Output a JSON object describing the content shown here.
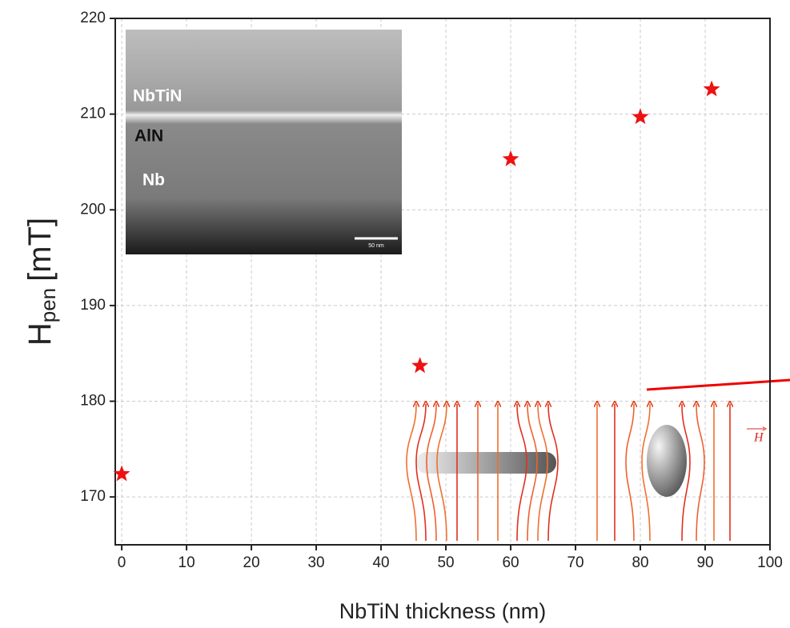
{
  "chart_data": {
    "type": "scatter",
    "x_label": "NbTiN thickness (nm)",
    "y_label": {
      "main": "H",
      "sub": "pen",
      "unit": "[mT]"
    },
    "x": [
      0,
      46,
      60,
      80,
      91
    ],
    "series": [
      {
        "color": "#ee1111",
        "values": [
          172.4,
          183.7,
          205.3,
          209.7,
          212.6
        ]
      }
    ],
    "xlim": [
      -1,
      100
    ],
    "xticks": [
      0,
      10,
      20,
      30,
      40,
      50,
      60,
      70,
      80,
      90,
      100
    ],
    "ylim": [
      165,
      220
    ],
    "yticks": [
      170,
      180,
      190,
      200,
      210,
      220
    ],
    "grid": true,
    "inset_labels": [
      "NbTiN",
      "AlN",
      "Nb",
      "50 nm"
    ],
    "field_label": "H"
  }
}
